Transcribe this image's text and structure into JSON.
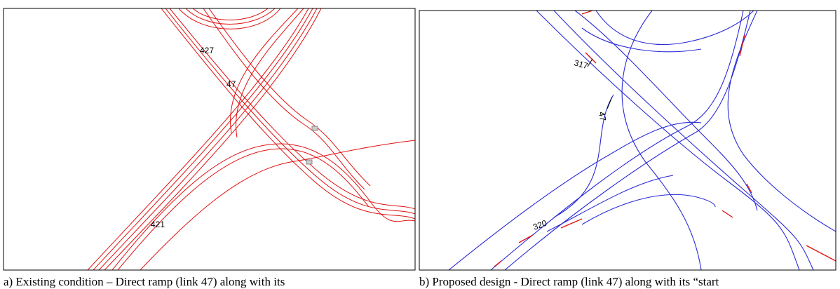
{
  "panels": [
    {
      "labels": [
        "427",
        "47",
        "421"
      ],
      "caption": "a) Existing condition – Direct ramp (link 47) along with its"
    },
    {
      "labels": [
        "317",
        "47",
        "320"
      ],
      "caption": "b) Proposed design - Direct ramp (link 47) along with its “start"
    }
  ]
}
